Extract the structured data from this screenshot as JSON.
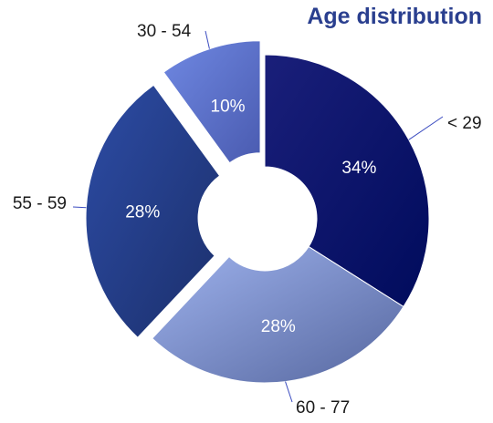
{
  "chart_data": {
    "type": "pie",
    "donut": true,
    "title": "Age distribution",
    "categories": [
      "< 29",
      "60 - 77",
      "55 - 59",
      "30 - 54"
    ],
    "values": [
      34,
      28,
      28,
      10
    ],
    "value_labels": [
      "34%",
      "28%",
      "28%",
      "10%"
    ],
    "exploded": [
      false,
      false,
      true,
      true
    ],
    "colors": {
      "< 29": [
        "#1a1f7a",
        "#000b5c"
      ],
      "60 - 77": [
        "#9fb3ee",
        "#56679f"
      ],
      "55 - 59": [
        "#2d4ca5",
        "#1b2f6b"
      ],
      "30 - 54": [
        "#6f88e2",
        "#4a5bb0"
      ]
    },
    "leader_line_color": "#3b4cc0",
    "title_color": "#2a3f8f",
    "legend": "none",
    "grid": false
  }
}
